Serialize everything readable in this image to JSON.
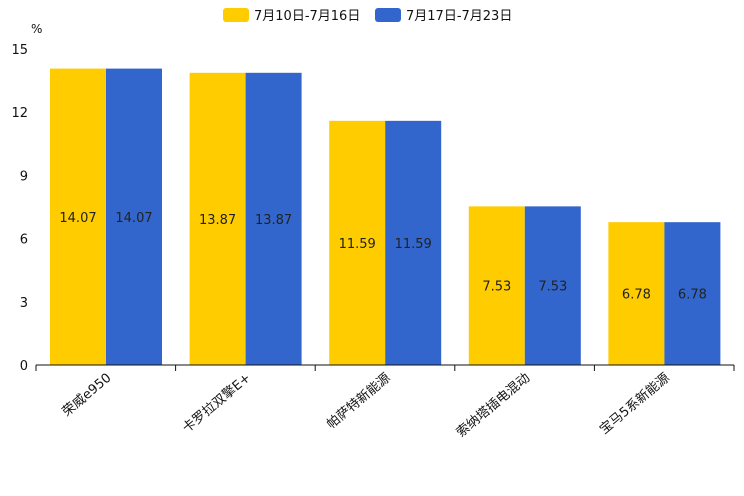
{
  "chart_data": {
    "type": "bar",
    "title": "",
    "xlabel": "",
    "ylabel": "%",
    "ylim": [
      0,
      15
    ],
    "yticks": [
      0,
      3,
      6,
      9,
      12,
      15
    ],
    "legend_position": "top-center",
    "categories": [
      "荣威e950",
      "卡罗拉双擎E+",
      "帕萨特新能源",
      "索纳塔插电混动",
      "宝马5系新能源"
    ],
    "series": [
      {
        "name": "7月10日-7月16日",
        "color": "#FFCC00",
        "values": [
          14.07,
          13.87,
          11.59,
          7.53,
          6.78
        ]
      },
      {
        "name": "7月17日-7月23日",
        "color": "#3366CC",
        "values": [
          14.07,
          13.87,
          11.59,
          7.53,
          6.78
        ]
      }
    ]
  }
}
